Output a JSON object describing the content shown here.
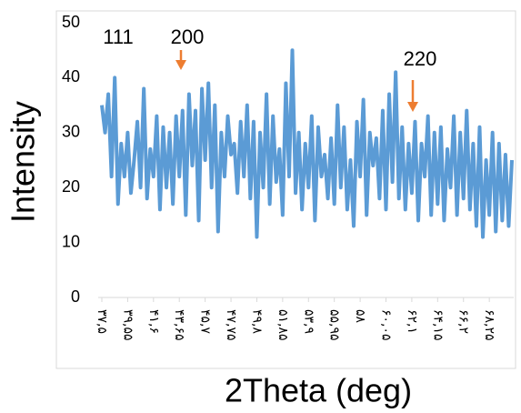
{
  "chart_data": {
    "type": "line",
    "xlabel": "2Theta (deg)",
    "ylabel": "Intensity",
    "annotations": [
      "111",
      "200",
      "220"
    ],
    "categories": [
      "۳۷,۵",
      null,
      null,
      null,
      null,
      null,
      null,
      null,
      "۳۹,۵۵",
      null,
      null,
      null,
      null,
      null,
      null,
      null,
      "۴۱,۶",
      null,
      null,
      null,
      null,
      null,
      null,
      null,
      "۴۳,۶۵",
      null,
      null,
      null,
      null,
      null,
      null,
      null,
      "۴۵,۷",
      null,
      null,
      null,
      null,
      null,
      null,
      null,
      "۴۷,۷۵",
      null,
      null,
      null,
      null,
      null,
      null,
      null,
      "۴۹,۸",
      null,
      null,
      null,
      null,
      null,
      null,
      null,
      "۵۱,۸۵",
      null,
      null,
      null,
      null,
      null,
      null,
      null,
      "۵۳,۹",
      null,
      null,
      null,
      null,
      null,
      null,
      null,
      "۵۵,۹۵",
      null,
      null,
      null,
      null,
      null,
      null,
      null,
      "۵۸",
      null,
      null,
      null,
      null,
      null,
      null,
      null,
      "۶۰,۰۵",
      null,
      null,
      null,
      null,
      null,
      null,
      null,
      "۶۲,۱",
      null,
      null,
      null,
      null,
      null,
      null,
      null,
      "۶۴,۱۵",
      null,
      null,
      null,
      null,
      null,
      null,
      null,
      "۶۶,۲",
      null,
      null,
      null,
      null,
      null,
      null,
      null,
      "۶۸,۲۵",
      null,
      null,
      null,
      null,
      null,
      null,
      null
    ],
    "values": [
      35,
      30,
      37,
      22,
      40,
      17,
      28,
      22,
      30,
      19,
      25,
      32,
      20,
      38,
      18,
      27,
      22,
      33,
      16,
      31,
      20,
      30,
      17,
      33,
      22,
      34,
      15,
      37,
      24,
      34,
      14,
      38,
      25,
      39,
      20,
      35,
      12,
      30,
      22,
      33,
      26,
      28,
      19,
      32,
      22,
      35,
      18,
      32,
      11,
      30,
      20,
      37,
      17,
      33,
      21,
      27,
      15,
      39,
      22,
      45,
      19,
      30,
      16,
      28,
      20,
      33,
      14,
      31,
      22,
      26,
      18,
      29,
      17,
      35,
      20,
      31,
      16,
      25,
      13,
      32,
      22,
      36,
      15,
      30,
      24,
      29,
      18,
      34,
      16,
      37,
      21,
      41,
      18,
      31,
      16,
      28,
      19,
      32,
      14,
      28,
      22,
      33,
      15,
      30,
      17,
      31,
      14,
      27,
      20,
      33,
      15,
      30,
      18,
      34,
      16,
      28,
      13,
      31,
      11,
      25,
      15,
      30,
      12,
      28,
      14,
      26,
      13,
      25
    ],
    "color": "#5b9bd5",
    "ylim": [
      0,
      50
    ],
    "yticks": [
      0,
      10,
      20,
      30,
      40,
      50
    ],
    "grid": false
  }
}
